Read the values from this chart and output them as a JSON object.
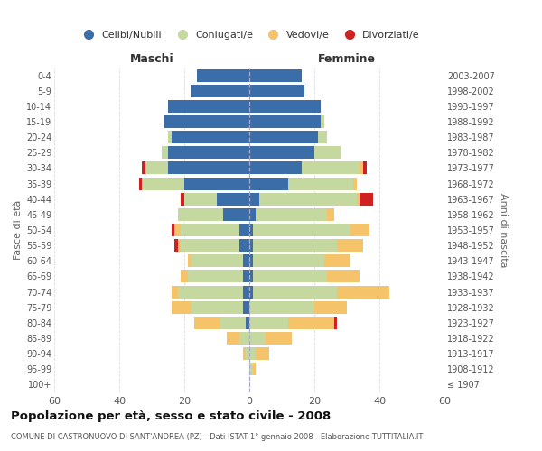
{
  "age_groups": [
    "100+",
    "95-99",
    "90-94",
    "85-89",
    "80-84",
    "75-79",
    "70-74",
    "65-69",
    "60-64",
    "55-59",
    "50-54",
    "45-49",
    "40-44",
    "35-39",
    "30-34",
    "25-29",
    "20-24",
    "15-19",
    "10-14",
    "5-9",
    "0-4"
  ],
  "birth_years": [
    "≤ 1907",
    "1908-1912",
    "1913-1917",
    "1918-1922",
    "1923-1927",
    "1928-1932",
    "1933-1937",
    "1938-1942",
    "1943-1947",
    "1948-1952",
    "1953-1957",
    "1958-1962",
    "1963-1967",
    "1968-1972",
    "1973-1977",
    "1978-1982",
    "1983-1987",
    "1988-1992",
    "1993-1997",
    "1998-2002",
    "2003-2007"
  ],
  "male_celibi": [
    0,
    0,
    0,
    0,
    1,
    2,
    2,
    2,
    2,
    3,
    3,
    8,
    10,
    20,
    25,
    25,
    24,
    26,
    25,
    18,
    16
  ],
  "male_coniugati": [
    0,
    0,
    1,
    3,
    8,
    16,
    20,
    17,
    16,
    18,
    18,
    14,
    10,
    13,
    7,
    2,
    1,
    0,
    0,
    0,
    0
  ],
  "male_vedovi": [
    0,
    0,
    1,
    4,
    8,
    6,
    2,
    2,
    1,
    1,
    2,
    0,
    0,
    0,
    0,
    0,
    0,
    0,
    0,
    0,
    0
  ],
  "male_divorziati": [
    0,
    0,
    0,
    0,
    0,
    0,
    0,
    0,
    0,
    1,
    1,
    0,
    1,
    1,
    1,
    0,
    0,
    0,
    0,
    0,
    0
  ],
  "female_celibi": [
    0,
    0,
    0,
    0,
    0,
    0,
    1,
    1,
    1,
    1,
    1,
    2,
    3,
    12,
    16,
    20,
    21,
    22,
    22,
    17,
    16
  ],
  "female_coniugati": [
    0,
    1,
    2,
    5,
    12,
    20,
    26,
    23,
    22,
    26,
    30,
    22,
    30,
    20,
    18,
    8,
    3,
    1,
    0,
    0,
    0
  ],
  "female_vedovi": [
    0,
    1,
    4,
    8,
    14,
    10,
    16,
    10,
    8,
    8,
    6,
    2,
    1,
    1,
    1,
    0,
    0,
    0,
    0,
    0,
    0
  ],
  "female_divorziati": [
    0,
    0,
    0,
    0,
    1,
    0,
    0,
    0,
    0,
    0,
    0,
    0,
    4,
    0,
    1,
    0,
    0,
    0,
    0,
    0,
    0
  ],
  "colors": {
    "celibi": "#3b6ea8",
    "coniugati": "#c5d8a0",
    "vedovi": "#f5c46a",
    "divorziati": "#cc2222"
  },
  "legend_labels": [
    "Celibi/Nubili",
    "Coniugati/e",
    "Vedovi/e",
    "Divorziati/e"
  ],
  "title": "Popolazione per età, sesso e stato civile - 2008",
  "subtitle": "COMUNE DI CASTRONUOVO DI SANT'ANDREA (PZ) - Dati ISTAT 1° gennaio 2008 - Elaborazione TUTTITALIA.IT",
  "xlabel_left": "Maschi",
  "xlabel_right": "Femmine",
  "ylabel_left": "Fasce di età",
  "ylabel_right": "Anni di nascita",
  "xlim": 60,
  "bg_color": "#ffffff",
  "grid_color": "#dddddd"
}
